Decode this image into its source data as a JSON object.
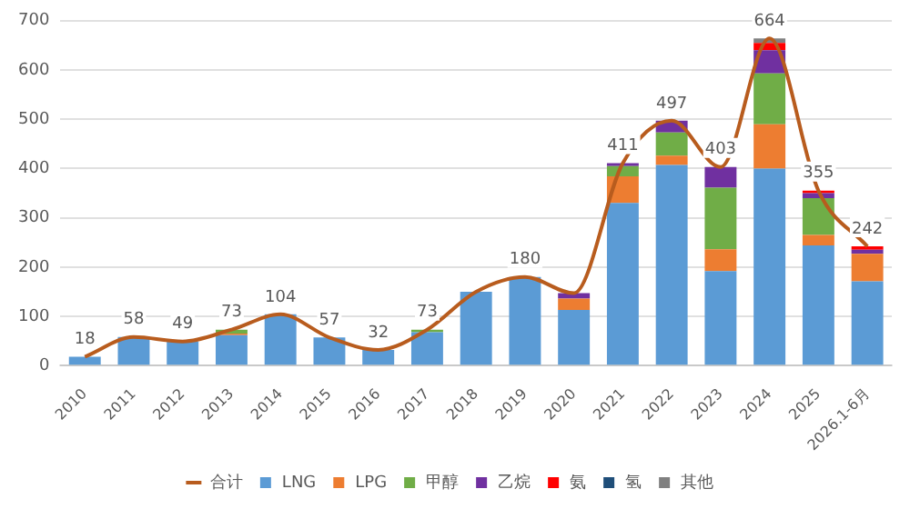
{
  "chart_data": {
    "type": "bar",
    "stacked": true,
    "categories": [
      "2010",
      "2011",
      "2012",
      "2013",
      "2014",
      "2015",
      "2016",
      "2017",
      "2018",
      "2019",
      "2020",
      "2021",
      "2022",
      "2023",
      "2024",
      "2025",
      "2026.1-6月"
    ],
    "series": [
      {
        "name": "LNG",
        "color": "#5b9bd5",
        "values": [
          18,
          58,
          49,
          62,
          104,
          57,
          32,
          68,
          150,
          180,
          113,
          330,
          407,
          192,
          400,
          244,
          171
        ]
      },
      {
        "name": "LPG",
        "color": "#ed7d31",
        "values": [
          0,
          0,
          0,
          3,
          0,
          0,
          0,
          0,
          0,
          0,
          23,
          54,
          19,
          44,
          90,
          21,
          56
        ]
      },
      {
        "name": "甲醇",
        "color": "#70ad47",
        "values": [
          0,
          0,
          0,
          8,
          null,
          0,
          0,
          5,
          0,
          null,
          0,
          21,
          47,
          125,
          103,
          75,
          0
        ]
      },
      {
        "name": "乙烷",
        "color": "#7030a0",
        "values": [
          0,
          0,
          0,
          0,
          0,
          0,
          0,
          0,
          0,
          0,
          11,
          6,
          24,
          42,
          47,
          10,
          8
        ]
      },
      {
        "name": "氨",
        "color": "#ff0000",
        "values": [
          0,
          0,
          0,
          0,
          0,
          0,
          0,
          0,
          0,
          0,
          0,
          0,
          0,
          0,
          15,
          5,
          7
        ]
      },
      {
        "name": "氢",
        "color": "#1f4e79",
        "values": [
          0,
          0,
          0,
          0,
          0,
          0,
          0,
          0,
          0,
          0,
          0,
          0,
          0,
          0,
          0,
          0,
          0
        ]
      },
      {
        "name": "其他",
        "color": "#808080",
        "values": [
          0,
          0,
          0,
          0,
          0,
          0,
          0,
          0,
          0,
          0,
          0,
          0,
          0,
          0,
          9,
          0,
          0
        ]
      },
      {
        "name": "合计",
        "type": "line",
        "color": "#b85c1e",
        "values": [
          18,
          58,
          49,
          73,
          104,
          57,
          32,
          73,
          150,
          180,
          147,
          411,
          497,
          403,
          664,
          355,
          242
        ],
        "value_labels": [
          "18",
          "58",
          "49",
          "73",
          "104",
          "57",
          "32",
          "73",
          null,
          "180",
          null,
          "411",
          "497",
          "403",
          "664",
          "355",
          "242"
        ]
      }
    ],
    "ylim": [
      0,
      700
    ],
    "yticks": [
      0,
      100,
      200,
      300,
      400,
      500,
      600,
      700
    ],
    "grid": "y",
    "legend": "bottom",
    "marker": "none"
  }
}
